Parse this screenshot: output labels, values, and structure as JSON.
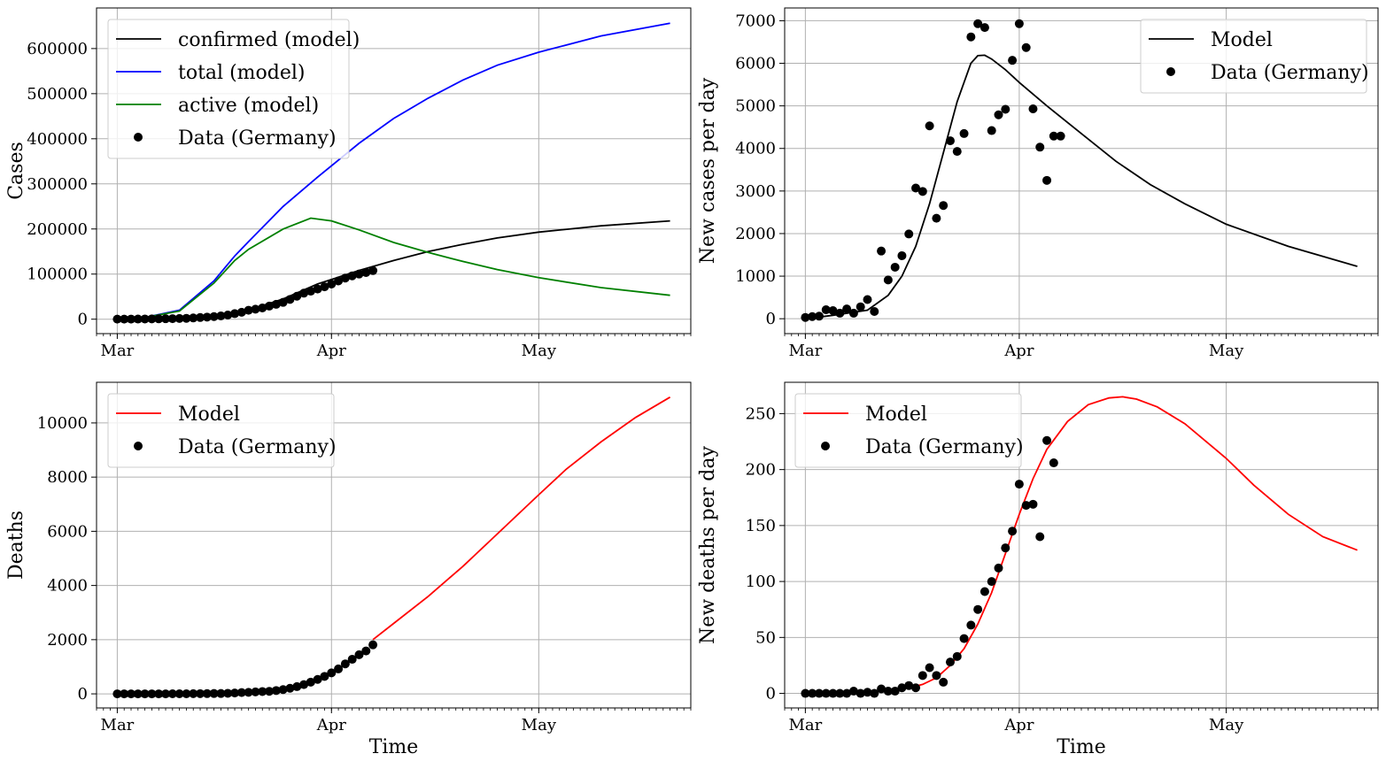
{
  "chart_data": [
    {
      "type": "line",
      "ylabel": "Cases",
      "xlabel": "",
      "ylim": [
        -32000,
        690000
      ],
      "yticks": [
        0,
        100000,
        200000,
        300000,
        400000,
        500000,
        600000
      ],
      "grid": true,
      "legend_position": "top-left",
      "series": [
        {
          "name": "confirmed (model)",
          "color": "#000000",
          "kind": "line",
          "x": [
            "2020-03-01",
            "2020-03-10",
            "2020-03-15",
            "2020-03-20",
            "2020-03-25",
            "2020-03-30",
            "2020-04-05",
            "2020-04-10",
            "2020-04-15",
            "2020-04-20",
            "2020-04-25",
            "2020-05-01",
            "2020-05-10",
            "2020-05-20"
          ],
          "y": [
            0,
            1500,
            5500,
            20000,
            45000,
            78000,
            108000,
            130000,
            150000,
            166000,
            180000,
            193000,
            207000,
            218000
          ]
        },
        {
          "name": "total (model)",
          "color": "#0000ff",
          "kind": "line",
          "x": [
            "2020-03-01",
            "2020-03-05",
            "2020-03-10",
            "2020-03-15",
            "2020-03-18",
            "2020-03-20",
            "2020-03-25",
            "2020-03-30",
            "2020-04-05",
            "2020-04-10",
            "2020-04-15",
            "2020-04-20",
            "2020-04-25",
            "2020-05-01",
            "2020-05-10",
            "2020-05-20"
          ],
          "y": [
            0,
            4000,
            20000,
            85000,
            140000,
            172000,
            250000,
            315000,
            390000,
            445000,
            490000,
            530000,
            563000,
            592000,
            628000,
            656000
          ]
        },
        {
          "name": "active (model)",
          "color": "#008000",
          "kind": "line",
          "x": [
            "2020-03-01",
            "2020-03-05",
            "2020-03-10",
            "2020-03-15",
            "2020-03-18",
            "2020-03-20",
            "2020-03-25",
            "2020-03-29",
            "2020-04-01",
            "2020-04-05",
            "2020-04-10",
            "2020-04-15",
            "2020-04-20",
            "2020-04-25",
            "2020-05-01",
            "2020-05-10",
            "2020-05-20"
          ],
          "y": [
            0,
            4000,
            18000,
            80000,
            130000,
            155000,
            200000,
            224000,
            218000,
            198000,
            170000,
            148000,
            128000,
            110000,
            92000,
            70000,
            53000
          ]
        },
        {
          "name": "Data (Germany)",
          "color": "#000000",
          "kind": "scatter",
          "x": [
            "2020-03-01",
            "2020-03-02",
            "2020-03-03",
            "2020-03-04",
            "2020-03-05",
            "2020-03-06",
            "2020-03-07",
            "2020-03-08",
            "2020-03-09",
            "2020-03-10",
            "2020-03-11",
            "2020-03-12",
            "2020-03-13",
            "2020-03-14",
            "2020-03-15",
            "2020-03-16",
            "2020-03-17",
            "2020-03-18",
            "2020-03-19",
            "2020-03-20",
            "2020-03-21",
            "2020-03-22",
            "2020-03-23",
            "2020-03-24",
            "2020-03-25",
            "2020-03-26",
            "2020-03-27",
            "2020-03-28",
            "2020-03-29",
            "2020-03-30",
            "2020-03-31",
            "2020-04-01",
            "2020-04-02",
            "2020-04-03",
            "2020-04-04",
            "2020-04-05",
            "2020-04-06",
            "2020-04-07"
          ],
          "y": [
            130,
            160,
            200,
            260,
            480,
            670,
            800,
            1040,
            1180,
            1560,
            1960,
            2740,
            3700,
            4600,
            5800,
            7300,
            9200,
            12300,
            15300,
            19800,
            22200,
            24900,
            29000,
            32900,
            37300,
            43900,
            50900,
            57700,
            62100,
            66900,
            71800,
            77900,
            84800,
            91200,
            96100,
            100100,
            103400,
            107700
          ]
        }
      ]
    },
    {
      "type": "line",
      "ylabel": "New cases per day",
      "xlabel": "",
      "ylim": [
        -350,
        7300
      ],
      "yticks": [
        0,
        1000,
        2000,
        3000,
        4000,
        5000,
        6000,
        7000
      ],
      "grid": true,
      "legend_position": "top-right",
      "series": [
        {
          "name": "Model",
          "color": "#000000",
          "kind": "line",
          "x": [
            "2020-03-01",
            "2020-03-05",
            "2020-03-10",
            "2020-03-13",
            "2020-03-15",
            "2020-03-17",
            "2020-03-19",
            "2020-03-21",
            "2020-03-23",
            "2020-03-25",
            "2020-03-26",
            "2020-03-27",
            "2020-03-28",
            "2020-03-30",
            "2020-04-01",
            "2020-04-05",
            "2020-04-10",
            "2020-04-15",
            "2020-04-20",
            "2020-04-25",
            "2020-05-01",
            "2020-05-10",
            "2020-05-20"
          ],
          "y": [
            0,
            80,
            200,
            550,
            1000,
            1700,
            2700,
            3900,
            5100,
            6000,
            6180,
            6190,
            6100,
            5850,
            5550,
            5000,
            4350,
            3700,
            3150,
            2700,
            2220,
            1700,
            1230
          ]
        },
        {
          "name": "Data (Germany)",
          "color": "#000000",
          "kind": "scatter",
          "x": [
            "2020-03-01",
            "2020-03-02",
            "2020-03-03",
            "2020-03-04",
            "2020-03-05",
            "2020-03-06",
            "2020-03-07",
            "2020-03-08",
            "2020-03-09",
            "2020-03-10",
            "2020-03-11",
            "2020-03-12",
            "2020-03-13",
            "2020-03-14",
            "2020-03-15",
            "2020-03-16",
            "2020-03-17",
            "2020-03-18",
            "2020-03-19",
            "2020-03-20",
            "2020-03-21",
            "2020-03-22",
            "2020-03-23",
            "2020-03-24",
            "2020-03-25",
            "2020-03-26",
            "2020-03-27",
            "2020-03-28",
            "2020-03-29",
            "2020-03-30",
            "2020-03-31",
            "2020-04-01",
            "2020-04-02",
            "2020-04-03",
            "2020-04-04",
            "2020-04-05",
            "2020-04-06",
            "2020-04-07"
          ],
          "y": [
            30,
            50,
            60,
            210,
            190,
            130,
            230,
            130,
            280,
            450,
            170,
            1590,
            910,
            1210,
            1480,
            1990,
            3070,
            2990,
            4530,
            2360,
            2660,
            4180,
            3930,
            4350,
            6620,
            6930,
            6840,
            4420,
            4790,
            4920,
            6070,
            6930,
            6370,
            4930,
            4030,
            3250,
            4290,
            4290
          ]
        }
      ]
    },
    {
      "type": "line",
      "ylabel": "Deaths",
      "xlabel": "Time",
      "ylim": [
        -520,
        11500
      ],
      "yticks": [
        0,
        2000,
        4000,
        6000,
        8000,
        10000
      ],
      "grid": true,
      "legend_position": "top-left",
      "series": [
        {
          "name": "Model",
          "color": "#ff0000",
          "kind": "line",
          "x": [
            "2020-04-07",
            "2020-04-10",
            "2020-04-15",
            "2020-04-20",
            "2020-04-25",
            "2020-05-01",
            "2020-05-05",
            "2020-05-10",
            "2020-05-15",
            "2020-05-20"
          ],
          "y": [
            2000,
            2600,
            3600,
            4700,
            5900,
            7350,
            8300,
            9300,
            10200,
            10950
          ]
        },
        {
          "name": "Data (Germany)",
          "color": "#000000",
          "kind": "scatter",
          "x": [
            "2020-03-01",
            "2020-03-02",
            "2020-03-03",
            "2020-03-04",
            "2020-03-05",
            "2020-03-06",
            "2020-03-07",
            "2020-03-08",
            "2020-03-09",
            "2020-03-10",
            "2020-03-11",
            "2020-03-12",
            "2020-03-13",
            "2020-03-14",
            "2020-03-15",
            "2020-03-16",
            "2020-03-17",
            "2020-03-18",
            "2020-03-19",
            "2020-03-20",
            "2020-03-21",
            "2020-03-22",
            "2020-03-23",
            "2020-03-24",
            "2020-03-25",
            "2020-03-26",
            "2020-03-27",
            "2020-03-28",
            "2020-03-29",
            "2020-03-30",
            "2020-03-31",
            "2020-04-01",
            "2020-04-02",
            "2020-04-03",
            "2020-04-04",
            "2020-04-05",
            "2020-04-06",
            "2020-04-07"
          ],
          "y": [
            0,
            0,
            0,
            0,
            0,
            0,
            0,
            0,
            2,
            2,
            3,
            6,
            8,
            9,
            13,
            13,
            20,
            31,
            47,
            55,
            72,
            86,
            94,
            123,
            157,
            206,
            267,
            342,
            433,
            533,
            645,
            775,
            920,
            1107,
            1275,
            1444,
            1584,
            1810
          ]
        }
      ]
    },
    {
      "type": "line",
      "ylabel": "New deaths per day",
      "xlabel": "Time",
      "ylim": [
        -13,
        278
      ],
      "yticks": [
        0,
        50,
        100,
        150,
        200,
        250
      ],
      "grid": true,
      "legend_position": "top-left",
      "series": [
        {
          "name": "Model",
          "color": "#ff0000",
          "kind": "line",
          "x": [
            "2020-03-16",
            "2020-03-18",
            "2020-03-20",
            "2020-03-22",
            "2020-03-24",
            "2020-03-26",
            "2020-03-28",
            "2020-03-30",
            "2020-04-01",
            "2020-04-03",
            "2020-04-05",
            "2020-04-08",
            "2020-04-11",
            "2020-04-14",
            "2020-04-16",
            "2020-04-18",
            "2020-04-21",
            "2020-04-25",
            "2020-05-01",
            "2020-05-05",
            "2020-05-10",
            "2020-05-15",
            "2020-05-20"
          ],
          "y": [
            5,
            8,
            14,
            25,
            40,
            62,
            90,
            125,
            160,
            192,
            218,
            243,
            258,
            264,
            265,
            263,
            256,
            241,
            210,
            186,
            160,
            140,
            128
          ]
        },
        {
          "name": "Data (Germany)",
          "color": "#000000",
          "kind": "scatter",
          "x": [
            "2020-03-01",
            "2020-03-02",
            "2020-03-03",
            "2020-03-04",
            "2020-03-05",
            "2020-03-06",
            "2020-03-07",
            "2020-03-08",
            "2020-03-09",
            "2020-03-10",
            "2020-03-11",
            "2020-03-12",
            "2020-03-13",
            "2020-03-14",
            "2020-03-15",
            "2020-03-16",
            "2020-03-17",
            "2020-03-18",
            "2020-03-19",
            "2020-03-20",
            "2020-03-21",
            "2020-03-22",
            "2020-03-23",
            "2020-03-24",
            "2020-03-25",
            "2020-03-26",
            "2020-03-27",
            "2020-03-28",
            "2020-03-29",
            "2020-03-30",
            "2020-03-31",
            "2020-04-01",
            "2020-04-02",
            "2020-04-03",
            "2020-04-04",
            "2020-04-05",
            "2020-04-06"
          ],
          "y": [
            0,
            0,
            0,
            0,
            0,
            0,
            0,
            2,
            0,
            1,
            0,
            4,
            2,
            2,
            5,
            7,
            5,
            16,
            23,
            16,
            10,
            28,
            33,
            49,
            61,
            75,
            91,
            100,
            112,
            130,
            145,
            187,
            168,
            169,
            140,
            226,
            206
          ]
        }
      ]
    }
  ],
  "x_axis": {
    "tick_labels": [
      "Mar",
      "Apr",
      "May"
    ],
    "tick_dates": [
      "2020-03-01",
      "2020-04-01",
      "2020-05-01"
    ],
    "range": [
      "2020-02-27",
      "2020-05-23"
    ]
  }
}
